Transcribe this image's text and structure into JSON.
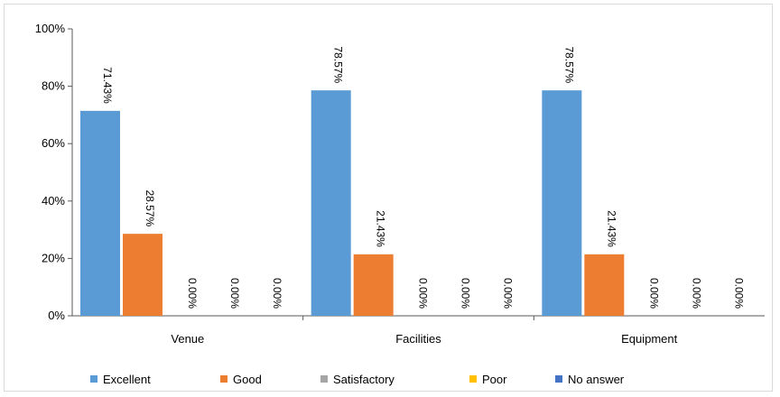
{
  "chart_data": {
    "type": "bar",
    "categories": [
      "Venue",
      "Facilities",
      "Equipment"
    ],
    "series": [
      {
        "name": "Excellent",
        "color": "#5b9bd5",
        "values": [
          71.43,
          78.57,
          78.57
        ],
        "labels": [
          "71.43%",
          "78.57%",
          "78.57%"
        ]
      },
      {
        "name": "Good",
        "color": "#ed7d31",
        "values": [
          28.57,
          21.43,
          21.43
        ],
        "labels": [
          "28.57%",
          "21.43%",
          "21.43%"
        ]
      },
      {
        "name": "Satisfactory",
        "color": "#a5a5a5",
        "values": [
          0,
          0,
          0
        ],
        "labels": [
          "0.00%",
          "0.00%",
          "0.00%"
        ]
      },
      {
        "name": "Poor",
        "color": "#ffc000",
        "values": [
          0,
          0,
          0
        ],
        "labels": [
          "0.00%",
          "0.00%",
          "0.00%"
        ]
      },
      {
        "name": "No answer",
        "color": "#4472c4",
        "values": [
          0,
          0,
          0
        ],
        "labels": [
          "0.00%",
          "0.00%",
          "0.00%"
        ]
      }
    ],
    "yticks": [
      "0%",
      "20%",
      "40%",
      "60%",
      "80%",
      "100%"
    ],
    "ylim": [
      0,
      100
    ],
    "title": "",
    "xlabel": "",
    "ylabel": "",
    "grid": false,
    "legend": "bottom"
  }
}
